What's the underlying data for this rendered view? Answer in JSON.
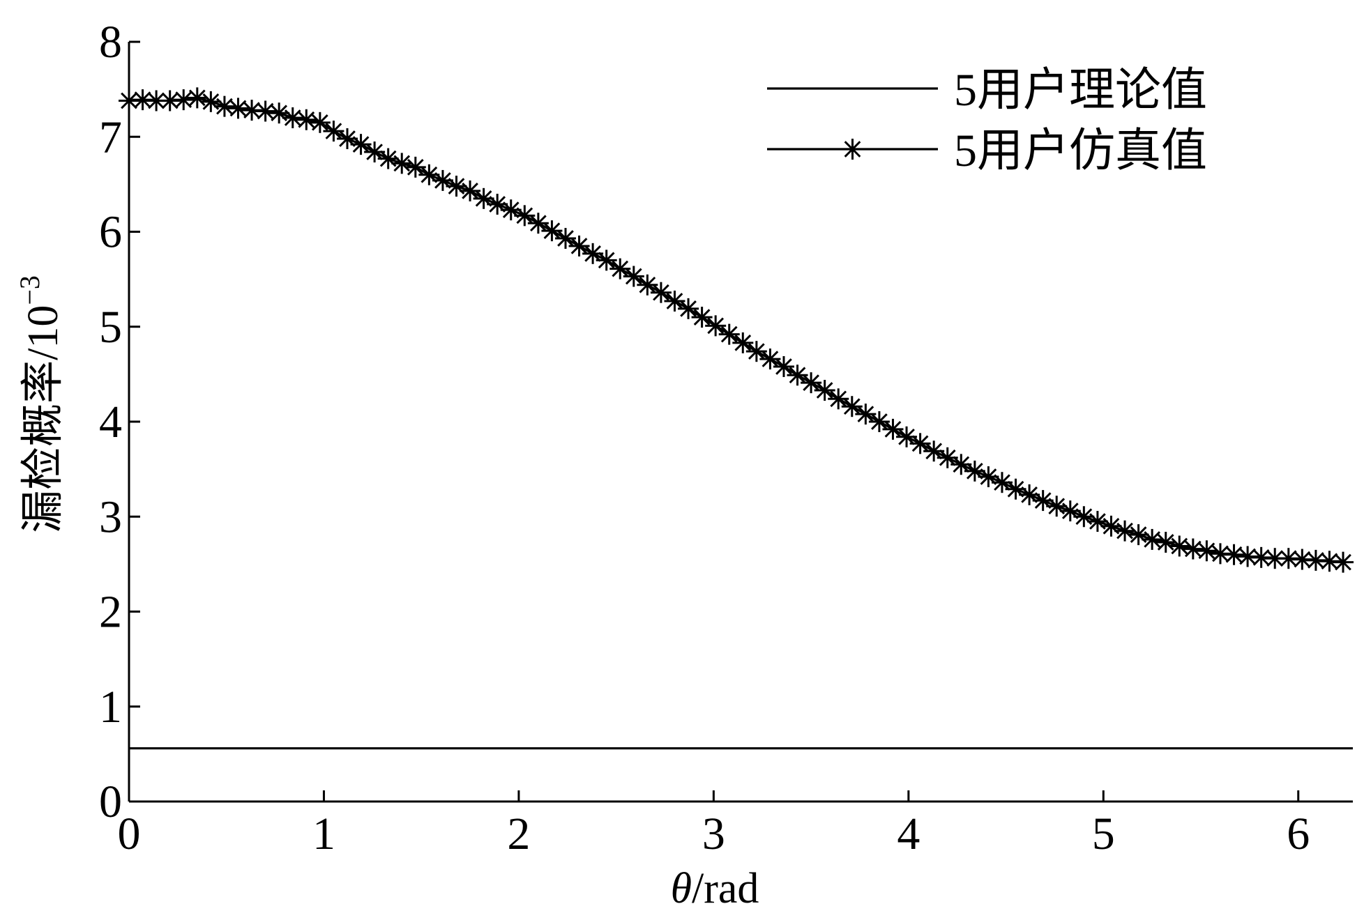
{
  "chart_data": {
    "type": "line",
    "title": "",
    "xlabel": {
      "symbol": "θ",
      "unit": "/rad"
    },
    "ylabel": {
      "text": "漏检概率/10",
      "exponent": "−3"
    },
    "xlim": [
      0,
      6.28
    ],
    "ylim": [
      0,
      8
    ],
    "xticks": [
      0,
      1,
      2,
      3,
      4,
      5,
      6
    ],
    "yticks": [
      0,
      1,
      2,
      3,
      4,
      5,
      6,
      7,
      8
    ],
    "grid": false,
    "legend_position": "top-right",
    "series": [
      {
        "name": "5用户理论值",
        "marker": "none",
        "color": "#000000",
        "x": [
          0,
          6.28
        ],
        "y": [
          0.56,
          0.56
        ]
      },
      {
        "name": "5用户仿真值",
        "marker": "star",
        "color": "#000000",
        "x": [
          0.0,
          0.07,
          0.14,
          0.21,
          0.28,
          0.35,
          0.42,
          0.49,
          0.56,
          0.63,
          0.7,
          0.77,
          0.84,
          0.91,
          0.98,
          1.05,
          1.12,
          1.19,
          1.26,
          1.33,
          1.4,
          1.47,
          1.54,
          1.61,
          1.68,
          1.75,
          1.82,
          1.89,
          1.96,
          2.03,
          2.1,
          2.17,
          2.24,
          2.31,
          2.38,
          2.45,
          2.52,
          2.59,
          2.66,
          2.73,
          2.8,
          2.87,
          2.94,
          3.01,
          3.08,
          3.15,
          3.22,
          3.29,
          3.36,
          3.43,
          3.5,
          3.57,
          3.64,
          3.71,
          3.78,
          3.85,
          3.92,
          3.99,
          4.06,
          4.13,
          4.2,
          4.27,
          4.34,
          4.41,
          4.48,
          4.55,
          4.62,
          4.69,
          4.76,
          4.83,
          4.9,
          4.97,
          5.04,
          5.11,
          5.18,
          5.25,
          5.32,
          5.39,
          5.46,
          5.53,
          5.6,
          5.67,
          5.74,
          5.81,
          5.88,
          5.95,
          6.02,
          6.09,
          6.16,
          6.23
        ],
        "y": [
          7.38,
          7.39,
          7.38,
          7.38,
          7.39,
          7.41,
          7.37,
          7.32,
          7.3,
          7.28,
          7.27,
          7.25,
          7.2,
          7.18,
          7.15,
          7.06,
          6.98,
          6.92,
          6.84,
          6.77,
          6.72,
          6.68,
          6.6,
          6.54,
          6.48,
          6.43,
          6.35,
          6.29,
          6.23,
          6.17,
          6.09,
          6.01,
          5.93,
          5.85,
          5.77,
          5.7,
          5.61,
          5.53,
          5.44,
          5.36,
          5.27,
          5.19,
          5.1,
          5.01,
          4.92,
          4.83,
          4.74,
          4.66,
          4.58,
          4.49,
          4.41,
          4.33,
          4.24,
          4.16,
          4.08,
          4.0,
          3.92,
          3.84,
          3.77,
          3.69,
          3.62,
          3.55,
          3.48,
          3.42,
          3.36,
          3.29,
          3.23,
          3.17,
          3.11,
          3.06,
          3.0,
          2.95,
          2.9,
          2.85,
          2.81,
          2.76,
          2.73,
          2.69,
          2.66,
          2.64,
          2.61,
          2.6,
          2.58,
          2.57,
          2.56,
          2.56,
          2.55,
          2.54,
          2.53,
          2.52
        ]
      }
    ]
  }
}
